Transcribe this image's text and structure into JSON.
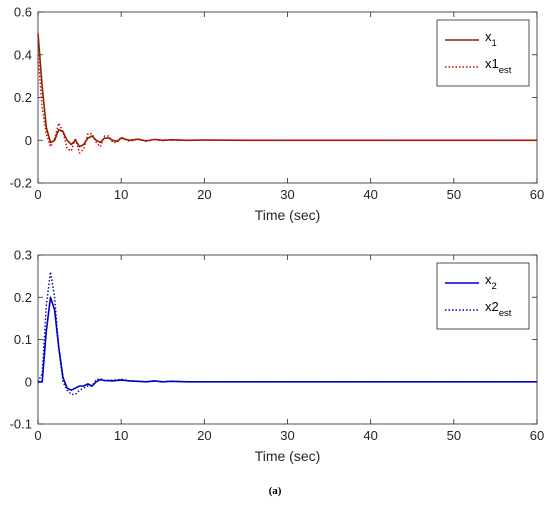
{
  "caption": "(a)",
  "chart_data": [
    {
      "type": "line",
      "xlabel": "Time (sec)",
      "ylabel": "",
      "xlim": [
        0,
        60
      ],
      "ylim": [
        -0.2,
        0.6
      ],
      "xticks": [
        "0",
        "10",
        "20",
        "30",
        "40",
        "50",
        "60"
      ],
      "yticks": [
        "-0.2",
        "0",
        "0.2",
        "0.4",
        "0.6"
      ],
      "grid": false,
      "legend_position": "top-right",
      "series": [
        {
          "name": "x1",
          "legend_main": "x",
          "legend_sub": "1",
          "color": "#8B2500",
          "style": "solid",
          "x": [
            0,
            0.5,
            1,
            1.5,
            2,
            2.5,
            3,
            3.5,
            4,
            4.5,
            5,
            5.5,
            6,
            6.5,
            7,
            7.5,
            8,
            8.5,
            9,
            9.5,
            10,
            10.5,
            11,
            12,
            13,
            14,
            15,
            16,
            18,
            20,
            25,
            30,
            40,
            50,
            60
          ],
          "y": [
            0.5,
            0.25,
            0.06,
            -0.01,
            0.0,
            0.05,
            0.04,
            0.0,
            -0.02,
            0.0,
            -0.03,
            -0.02,
            0.01,
            0.02,
            0.0,
            -0.01,
            0.01,
            0.01,
            0.0,
            -0.005,
            0.01,
            0.005,
            0.0,
            0.005,
            -0.003,
            0.004,
            0.0,
            0.002,
            0.0,
            0.001,
            0.0,
            0.0,
            0.0,
            0.0,
            0.0
          ]
        },
        {
          "name": "x1est",
          "legend_main": "x1",
          "legend_sub": "est",
          "color": "#CC0000",
          "style": "dotted",
          "x": [
            0,
            0.5,
            1,
            1.5,
            2,
            2.5,
            3,
            3.5,
            4,
            4.5,
            5,
            5.5,
            6,
            6.5,
            7,
            7.5,
            8,
            8.5,
            9,
            9.5,
            10,
            10.5,
            11,
            12,
            13,
            14,
            15,
            16,
            18,
            20,
            25,
            30,
            40,
            50,
            60
          ],
          "y": [
            0.4,
            0.15,
            0.03,
            -0.03,
            0.01,
            0.08,
            0.04,
            -0.04,
            -0.05,
            0.01,
            -0.06,
            -0.04,
            0.03,
            0.03,
            -0.01,
            -0.03,
            0.02,
            0.02,
            -0.01,
            -0.01,
            0.015,
            0.005,
            -0.005,
            0.005,
            -0.005,
            0.004,
            -0.002,
            0.002,
            0.0,
            0.001,
            0.0,
            0.0,
            0.0,
            0.0,
            0.0
          ]
        }
      ]
    },
    {
      "type": "line",
      "xlabel": "Time (sec)",
      "ylabel": "",
      "xlim": [
        0,
        60
      ],
      "ylim": [
        -0.1,
        0.3
      ],
      "xticks": [
        "0",
        "10",
        "20",
        "30",
        "40",
        "50",
        "60"
      ],
      "yticks": [
        "-0.1",
        "0",
        "0.1",
        "0.2",
        "0.3"
      ],
      "grid": false,
      "legend_position": "top-right",
      "series": [
        {
          "name": "x2",
          "legend_main": "x",
          "legend_sub": "2",
          "color": "#0000CC",
          "style": "solid",
          "x": [
            0,
            0.5,
            1,
            1.5,
            2,
            2.5,
            3,
            3.5,
            4,
            4.5,
            5,
            5.5,
            6,
            6.5,
            7,
            7.5,
            8,
            9,
            10,
            11,
            12,
            13,
            14,
            15,
            16,
            18,
            20,
            25,
            30,
            40,
            50,
            60
          ],
          "y": [
            0,
            0.0,
            0.12,
            0.2,
            0.17,
            0.08,
            0.01,
            -0.015,
            -0.02,
            -0.015,
            -0.01,
            -0.01,
            -0.005,
            -0.01,
            0.0,
            0.005,
            0.003,
            0.002,
            0.004,
            0.002,
            0.001,
            0.0,
            0.002,
            0.0,
            0.001,
            0.0,
            0.0,
            0.0,
            0.0,
            0.0,
            0.0,
            0.0
          ]
        },
        {
          "name": "x2est",
          "legend_main": "x2",
          "legend_sub": "est",
          "color": "#000099",
          "style": "dotted",
          "x": [
            0,
            0.5,
            1,
            1.5,
            2,
            2.5,
            3,
            3.5,
            4,
            4.5,
            5,
            5.5,
            6,
            6.5,
            7,
            7.5,
            8,
            9,
            10,
            11,
            12,
            13,
            14,
            15,
            16,
            18,
            20,
            25,
            30,
            40,
            50,
            60
          ],
          "y": [
            0,
            0.02,
            0.18,
            0.26,
            0.2,
            0.08,
            0.0,
            -0.02,
            -0.03,
            -0.03,
            -0.02,
            -0.015,
            -0.01,
            -0.01,
            0.005,
            0.007,
            0.003,
            0.004,
            0.006,
            0.002,
            0.001,
            0.0,
            0.002,
            0.0,
            0.001,
            0.0,
            0.0,
            0.0,
            0.0,
            0.0,
            0.0,
            0.0
          ]
        }
      ]
    }
  ]
}
